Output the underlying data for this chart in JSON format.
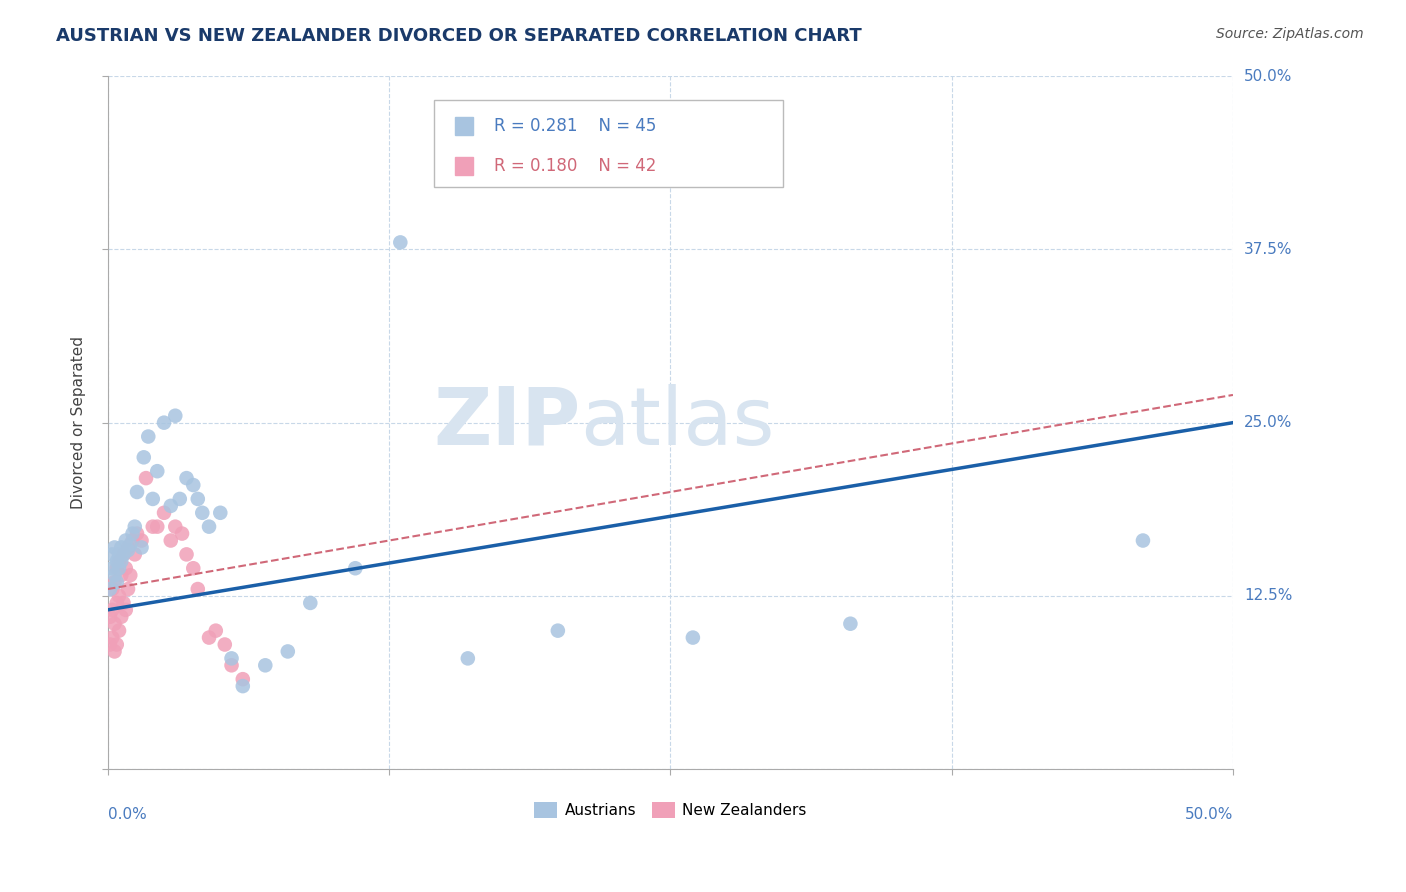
{
  "title": "AUSTRIAN VS NEW ZEALANDER DIVORCED OR SEPARATED CORRELATION CHART",
  "source": "Source: ZipAtlas.com",
  "ylabel": "Divorced or Separated",
  "legend_austrians": "Austrians",
  "legend_nz": "New Zealanders",
  "r_austrians": 0.281,
  "n_austrians": 45,
  "r_nz": 0.18,
  "n_nz": 42,
  "color_austrians": "#a8c4e0",
  "color_nz": "#f0a0b8",
  "line_color_austrians": "#1a5fa8",
  "line_color_nz": "#d06878",
  "background_color": "#ffffff",
  "grid_color": "#c8d8e8",
  "watermark_color": "#d8e4f0",
  "xlim": [
    0.0,
    0.5
  ],
  "ylim": [
    0.0,
    0.5
  ],
  "aus_line_x": [
    0.0,
    0.5
  ],
  "aus_line_y": [
    0.115,
    0.25
  ],
  "nz_line_x": [
    0.0,
    0.5
  ],
  "nz_line_y": [
    0.13,
    0.27
  ],
  "austrians_x": [
    0.001,
    0.002,
    0.002,
    0.003,
    0.003,
    0.004,
    0.004,
    0.005,
    0.005,
    0.006,
    0.006,
    0.007,
    0.008,
    0.009,
    0.01,
    0.011,
    0.012,
    0.013,
    0.015,
    0.016,
    0.018,
    0.02,
    0.022,
    0.025,
    0.028,
    0.03,
    0.032,
    0.035,
    0.038,
    0.04,
    0.042,
    0.045,
    0.05,
    0.055,
    0.06,
    0.07,
    0.08,
    0.09,
    0.11,
    0.13,
    0.16,
    0.2,
    0.26,
    0.33,
    0.46
  ],
  "austrians_y": [
    0.13,
    0.145,
    0.155,
    0.14,
    0.16,
    0.135,
    0.15,
    0.145,
    0.155,
    0.15,
    0.16,
    0.155,
    0.165,
    0.158,
    0.162,
    0.17,
    0.175,
    0.2,
    0.16,
    0.225,
    0.24,
    0.195,
    0.215,
    0.25,
    0.19,
    0.255,
    0.195,
    0.21,
    0.205,
    0.195,
    0.185,
    0.175,
    0.185,
    0.08,
    0.06,
    0.075,
    0.085,
    0.12,
    0.145,
    0.38,
    0.08,
    0.1,
    0.095,
    0.105,
    0.165
  ],
  "nz_x": [
    0.001,
    0.001,
    0.002,
    0.002,
    0.002,
    0.003,
    0.003,
    0.003,
    0.004,
    0.004,
    0.004,
    0.005,
    0.005,
    0.005,
    0.006,
    0.006,
    0.007,
    0.007,
    0.008,
    0.008,
    0.009,
    0.009,
    0.01,
    0.011,
    0.012,
    0.013,
    0.015,
    0.017,
    0.02,
    0.022,
    0.025,
    0.028,
    0.03,
    0.033,
    0.035,
    0.038,
    0.04,
    0.045,
    0.048,
    0.052,
    0.055,
    0.06
  ],
  "nz_y": [
    0.09,
    0.11,
    0.095,
    0.115,
    0.13,
    0.085,
    0.105,
    0.135,
    0.09,
    0.12,
    0.145,
    0.1,
    0.125,
    0.15,
    0.11,
    0.14,
    0.12,
    0.155,
    0.115,
    0.145,
    0.13,
    0.16,
    0.14,
    0.165,
    0.155,
    0.17,
    0.165,
    0.21,
    0.175,
    0.175,
    0.185,
    0.165,
    0.175,
    0.17,
    0.155,
    0.145,
    0.13,
    0.095,
    0.1,
    0.09,
    0.075,
    0.065
  ]
}
